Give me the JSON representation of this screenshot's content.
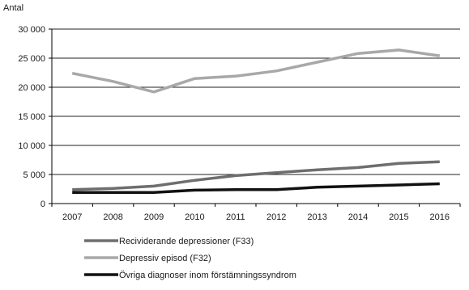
{
  "chart_data": {
    "type": "line",
    "ylabel": "Antal",
    "xlabel": "",
    "title": "",
    "categories": [
      "2007",
      "2008",
      "2009",
      "2010",
      "2011",
      "2012",
      "2013",
      "2014",
      "2015",
      "2016"
    ],
    "ylim": [
      0,
      30000
    ],
    "yticks": [
      0,
      5000,
      10000,
      15000,
      20000,
      25000,
      30000
    ],
    "ytick_labels": [
      "0",
      "5 000",
      "10 000",
      "15 000",
      "20 000",
      "25 000",
      "30 000"
    ],
    "grid": "horizontal",
    "legend_position": "bottom-left",
    "series": [
      {
        "name": "Recividerande depressioner (F33)",
        "color": "#6e6e6e",
        "values": [
          2400,
          2600,
          3000,
          4000,
          4800,
          5300,
          5800,
          6200,
          6900,
          7200
        ]
      },
      {
        "name": "Depressiv episod (F32)",
        "color": "#a8a8a8",
        "values": [
          22400,
          21000,
          19200,
          21500,
          21900,
          22800,
          24300,
          25800,
          26400,
          25400
        ]
      },
      {
        "name": "Övriga diagnoser inom förstämningssyndrom",
        "color": "#111111",
        "values": [
          1900,
          1900,
          1900,
          2300,
          2400,
          2400,
          2800,
          3000,
          3200,
          3400
        ]
      }
    ]
  }
}
